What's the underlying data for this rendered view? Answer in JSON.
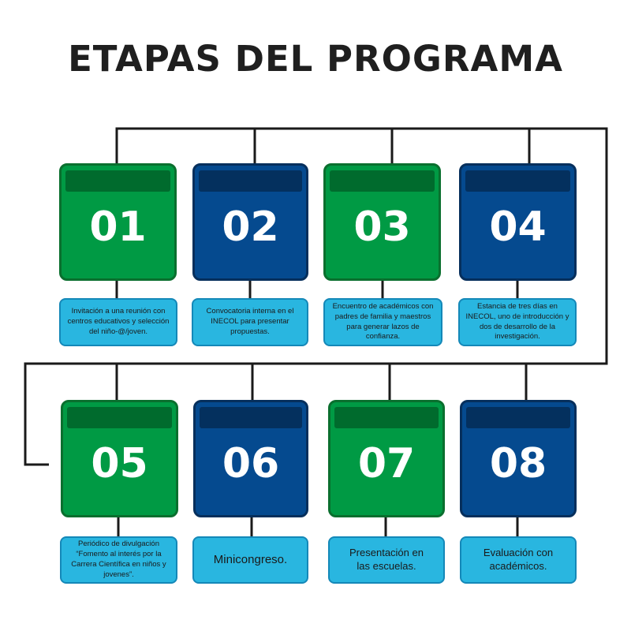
{
  "title": "ETAPAS DEL PROGRAMA",
  "colors": {
    "green": "#009a44",
    "blue": "#054a8f",
    "description": "#29b6e0",
    "connector": "#1a1a1a"
  },
  "stages": [
    {
      "number": "01",
      "color": "green",
      "text": "Invitación a una reunión con centros educativos y selección del niño-@/joven."
    },
    {
      "number": "02",
      "color": "blue",
      "text": "Convocatoria interna en el INECOL para presentar propuestas."
    },
    {
      "number": "03",
      "color": "green",
      "text": "Encuentro de académicos con padres de familia y maestros para generar lazos de confianza."
    },
    {
      "number": "04",
      "color": "blue",
      "text": "Estancia de tres días en INECOL, uno de introducción y dos de desarrollo de la investigación."
    },
    {
      "number": "05",
      "color": "green",
      "text": "Periódico de divulgación “Fomento al interés por la Carrera Científica en niños y jovenes”."
    },
    {
      "number": "06",
      "color": "blue",
      "text": "Minicongreso."
    },
    {
      "number": "07",
      "color": "green",
      "text": "Presentación en las escuelas."
    },
    {
      "number": "08",
      "color": "blue",
      "text": "Evaluación con académicos."
    }
  ]
}
